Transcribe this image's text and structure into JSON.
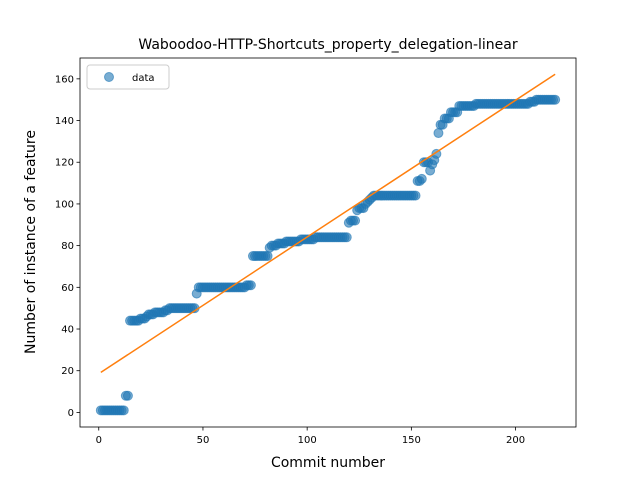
{
  "chart_data": {
    "type": "scatter",
    "title": "Waboodoo-HTTP-Shortcuts_property_delegation-linear",
    "xlabel": "Commit number",
    "ylabel": "Number of instance of a feature",
    "xlim": [
      -9,
      229
    ],
    "ylim": [
      -7,
      170
    ],
    "xticks": [
      0,
      50,
      100,
      150,
      200
    ],
    "yticks": [
      0,
      20,
      40,
      60,
      80,
      100,
      120,
      140,
      160
    ],
    "grid": false,
    "legend_position": "top-left",
    "series": [
      {
        "name": "data",
        "kind": "points",
        "color": "#1f77b4",
        "points": [
          [
            1,
            1
          ],
          [
            2,
            1
          ],
          [
            3,
            1
          ],
          [
            4,
            1
          ],
          [
            5,
            1
          ],
          [
            6,
            1
          ],
          [
            7,
            1
          ],
          [
            8,
            1
          ],
          [
            9,
            1
          ],
          [
            10,
            1
          ],
          [
            11,
            1
          ],
          [
            12,
            1
          ],
          [
            13,
            8
          ],
          [
            14,
            8
          ],
          [
            15,
            44
          ],
          [
            16,
            44
          ],
          [
            17,
            44
          ],
          [
            18,
            44
          ],
          [
            19,
            44
          ],
          [
            20,
            45
          ],
          [
            21,
            45
          ],
          [
            22,
            45
          ],
          [
            23,
            46
          ],
          [
            24,
            47
          ],
          [
            25,
            47
          ],
          [
            26,
            47
          ],
          [
            27,
            48
          ],
          [
            28,
            48
          ],
          [
            29,
            48
          ],
          [
            30,
            48
          ],
          [
            31,
            48
          ],
          [
            32,
            49
          ],
          [
            33,
            49
          ],
          [
            34,
            50
          ],
          [
            35,
            50
          ],
          [
            36,
            50
          ],
          [
            37,
            50
          ],
          [
            38,
            50
          ],
          [
            39,
            50
          ],
          [
            40,
            50
          ],
          [
            41,
            50
          ],
          [
            42,
            50
          ],
          [
            43,
            50
          ],
          [
            44,
            50
          ],
          [
            45,
            50
          ],
          [
            46,
            50
          ],
          [
            47,
            57
          ],
          [
            48,
            60
          ],
          [
            49,
            60
          ],
          [
            50,
            60
          ],
          [
            51,
            60
          ],
          [
            52,
            60
          ],
          [
            53,
            60
          ],
          [
            54,
            60
          ],
          [
            55,
            60
          ],
          [
            56,
            60
          ],
          [
            57,
            60
          ],
          [
            58,
            60
          ],
          [
            59,
            60
          ],
          [
            60,
            60
          ],
          [
            61,
            60
          ],
          [
            62,
            60
          ],
          [
            63,
            60
          ],
          [
            64,
            60
          ],
          [
            65,
            60
          ],
          [
            66,
            60
          ],
          [
            67,
            60
          ],
          [
            68,
            60
          ],
          [
            69,
            60
          ],
          [
            70,
            60
          ],
          [
            71,
            61
          ],
          [
            72,
            61
          ],
          [
            73,
            61
          ],
          [
            74,
            75
          ],
          [
            75,
            75
          ],
          [
            76,
            75
          ],
          [
            77,
            75
          ],
          [
            78,
            75
          ],
          [
            79,
            75
          ],
          [
            80,
            75
          ],
          [
            81,
            75
          ],
          [
            82,
            79
          ],
          [
            83,
            80
          ],
          [
            84,
            80
          ],
          [
            85,
            80
          ],
          [
            86,
            81
          ],
          [
            87,
            81
          ],
          [
            88,
            81
          ],
          [
            89,
            81
          ],
          [
            90,
            82
          ],
          [
            91,
            82
          ],
          [
            92,
            82
          ],
          [
            93,
            82
          ],
          [
            94,
            82
          ],
          [
            95,
            82
          ],
          [
            96,
            82
          ],
          [
            97,
            83
          ],
          [
            98,
            83
          ],
          [
            99,
            83
          ],
          [
            100,
            83
          ],
          [
            101,
            83
          ],
          [
            102,
            83
          ],
          [
            103,
            83
          ],
          [
            104,
            84
          ],
          [
            105,
            84
          ],
          [
            106,
            84
          ],
          [
            107,
            84
          ],
          [
            108,
            84
          ],
          [
            109,
            84
          ],
          [
            110,
            84
          ],
          [
            111,
            84
          ],
          [
            112,
            84
          ],
          [
            113,
            84
          ],
          [
            114,
            84
          ],
          [
            115,
            84
          ],
          [
            116,
            84
          ],
          [
            117,
            84
          ],
          [
            118,
            84
          ],
          [
            119,
            84
          ],
          [
            120,
            91
          ],
          [
            121,
            92
          ],
          [
            122,
            92
          ],
          [
            123,
            92
          ],
          [
            124,
            97
          ],
          [
            125,
            98
          ],
          [
            126,
            98
          ],
          [
            127,
            98
          ],
          [
            128,
            100
          ],
          [
            129,
            101
          ],
          [
            130,
            102
          ],
          [
            131,
            103
          ],
          [
            132,
            104
          ],
          [
            133,
            104
          ],
          [
            134,
            104
          ],
          [
            135,
            104
          ],
          [
            136,
            104
          ],
          [
            137,
            104
          ],
          [
            138,
            104
          ],
          [
            139,
            104
          ],
          [
            140,
            104
          ],
          [
            141,
            104
          ],
          [
            142,
            104
          ],
          [
            143,
            104
          ],
          [
            144,
            104
          ],
          [
            145,
            104
          ],
          [
            146,
            104
          ],
          [
            147,
            104
          ],
          [
            148,
            104
          ],
          [
            149,
            104
          ],
          [
            150,
            104
          ],
          [
            151,
            104
          ],
          [
            152,
            104
          ],
          [
            153,
            111
          ],
          [
            154,
            111
          ],
          [
            155,
            112
          ],
          [
            156,
            120
          ],
          [
            157,
            120
          ],
          [
            158,
            120
          ],
          [
            159,
            116
          ],
          [
            160,
            119
          ],
          [
            161,
            121
          ],
          [
            162,
            124
          ],
          [
            163,
            134
          ],
          [
            164,
            138
          ],
          [
            165,
            138
          ],
          [
            166,
            141
          ],
          [
            167,
            141
          ],
          [
            168,
            141
          ],
          [
            169,
            144
          ],
          [
            170,
            144
          ],
          [
            171,
            144
          ],
          [
            172,
            144
          ],
          [
            173,
            147
          ],
          [
            174,
            147
          ],
          [
            175,
            147
          ],
          [
            176,
            147
          ],
          [
            177,
            147
          ],
          [
            178,
            147
          ],
          [
            179,
            147
          ],
          [
            180,
            147
          ],
          [
            181,
            148
          ],
          [
            182,
            148
          ],
          [
            183,
            148
          ],
          [
            184,
            148
          ],
          [
            185,
            148
          ],
          [
            186,
            148
          ],
          [
            187,
            148
          ],
          [
            188,
            148
          ],
          [
            189,
            148
          ],
          [
            190,
            148
          ],
          [
            191,
            148
          ],
          [
            192,
            148
          ],
          [
            193,
            148
          ],
          [
            194,
            148
          ],
          [
            195,
            148
          ],
          [
            196,
            148
          ],
          [
            197,
            148
          ],
          [
            198,
            148
          ],
          [
            199,
            148
          ],
          [
            200,
            148
          ],
          [
            201,
            148
          ],
          [
            202,
            148
          ],
          [
            203,
            148
          ],
          [
            204,
            148
          ],
          [
            205,
            148
          ],
          [
            206,
            148
          ],
          [
            207,
            149
          ],
          [
            208,
            149
          ],
          [
            209,
            149
          ],
          [
            210,
            150
          ],
          [
            211,
            150
          ],
          [
            212,
            150
          ],
          [
            213,
            150
          ],
          [
            214,
            150
          ],
          [
            215,
            150
          ],
          [
            216,
            150
          ],
          [
            217,
            150
          ],
          [
            218,
            150
          ],
          [
            219,
            150
          ]
        ]
      },
      {
        "name": "",
        "kind": "line",
        "color": "#ff7f0e",
        "points": [
          [
            1,
            19.2
          ],
          [
            219,
            162.2
          ]
        ]
      }
    ]
  }
}
